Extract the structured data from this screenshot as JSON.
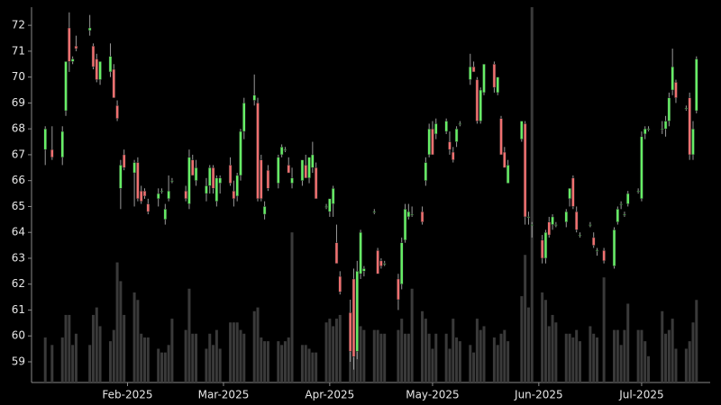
{
  "chart_data": {
    "type": "candlestick",
    "up_color": "#66ee66",
    "down_color": "#f07070",
    "wick_color": "#9a9a9a",
    "volume_color": "#3a3a3a",
    "xlim": [
      "2025-01-04",
      "2025-07-21"
    ],
    "xticks": [
      {
        "value": "2025-02-01",
        "label": "Feb-2025"
      },
      {
        "value": "2025-03-01",
        "label": "Mar-2025"
      },
      {
        "value": "2025-04-01",
        "label": "Apr-2025"
      },
      {
        "value": "2025-05-01",
        "label": "May-2025"
      },
      {
        "value": "2025-06-01",
        "label": "Jun-2025"
      },
      {
        "value": "2025-07-01",
        "label": "Jul-2025"
      }
    ],
    "ylim": [
      58.2,
      72.7
    ],
    "yticks": [
      59,
      60,
      61,
      62,
      63,
      64,
      65,
      66,
      67,
      68,
      69,
      70,
      71,
      72
    ],
    "vlim": [
      0,
      100
    ],
    "x": [
      "2025-01-08",
      "2025-01-10",
      "2025-01-13",
      "2025-01-14",
      "2025-01-15",
      "2025-01-16",
      "2025-01-17",
      "2025-01-21",
      "2025-01-22",
      "2025-01-23",
      "2025-01-24",
      "2025-01-27",
      "2025-01-28",
      "2025-01-29",
      "2025-01-30",
      "2025-01-31",
      "2025-02-03",
      "2025-02-04",
      "2025-02-05",
      "2025-02-06",
      "2025-02-07",
      "2025-02-10",
      "2025-02-11",
      "2025-02-12",
      "2025-02-13",
      "2025-02-14",
      "2025-02-18",
      "2025-02-19",
      "2025-02-20",
      "2025-02-21",
      "2025-02-24",
      "2025-02-25",
      "2025-02-26",
      "2025-02-27",
      "2025-02-28",
      "2025-03-03",
      "2025-03-04",
      "2025-03-05",
      "2025-03-06",
      "2025-03-07",
      "2025-03-10",
      "2025-03-11",
      "2025-03-12",
      "2025-03-13",
      "2025-03-14",
      "2025-03-17",
      "2025-03-18",
      "2025-03-19",
      "2025-03-20",
      "2025-03-21",
      "2025-03-24",
      "2025-03-25",
      "2025-03-26",
      "2025-03-27",
      "2025-03-28",
      "2025-03-31",
      "2025-04-01",
      "2025-04-02",
      "2025-04-03",
      "2025-04-04",
      "2025-04-07",
      "2025-04-08",
      "2025-04-09",
      "2025-04-10",
      "2025-04-11",
      "2025-04-14",
      "2025-04-15",
      "2025-04-16",
      "2025-04-17",
      "2025-04-21",
      "2025-04-22",
      "2025-04-23",
      "2025-04-24",
      "2025-04-25",
      "2025-04-28",
      "2025-04-29",
      "2025-04-30",
      "2025-05-01",
      "2025-05-02",
      "2025-05-05",
      "2025-05-06",
      "2025-05-07",
      "2025-05-08",
      "2025-05-09",
      "2025-05-12",
      "2025-05-13",
      "2025-05-14",
      "2025-05-15",
      "2025-05-16",
      "2025-05-19",
      "2025-05-20",
      "2025-05-21",
      "2025-05-22",
      "2025-05-23",
      "2025-05-27",
      "2025-05-28",
      "2025-05-29",
      "2025-05-30",
      "2025-06-02",
      "2025-06-03",
      "2025-06-04",
      "2025-06-05",
      "2025-06-06",
      "2025-06-09",
      "2025-06-10",
      "2025-06-11",
      "2025-06-12",
      "2025-06-13",
      "2025-06-16",
      "2025-06-17",
      "2025-06-18",
      "2025-06-20",
      "2025-06-23",
      "2025-06-24",
      "2025-06-25",
      "2025-06-26",
      "2025-06-27",
      "2025-06-30",
      "2025-07-01",
      "2025-07-02",
      "2025-07-03",
      "2025-07-07",
      "2025-07-08",
      "2025-07-09",
      "2025-07-10",
      "2025-07-11",
      "2025-07-14",
      "2025-07-15",
      "2025-07-16",
      "2025-07-17"
    ],
    "open": [
      67.2,
      67.2,
      66.9,
      68.7,
      71.9,
      70.6,
      71.2,
      71.8,
      71.2,
      70.7,
      69.9,
      70.2,
      70.3,
      68.9,
      65.7,
      67.0,
      66.3,
      66.7,
      65.6,
      65.6,
      65.1,
      65.3,
      65.6,
      64.5,
      65.3,
      66.0,
      65.6,
      65.1,
      66.8,
      66.0,
      65.5,
      65.8,
      66.5,
      65.2,
      65.9,
      66.6,
      65.6,
      65.4,
      66.2,
      67.9,
      69.1,
      69.0,
      66.8,
      64.7,
      66.4,
      65.9,
      67.0,
      67.2,
      66.6,
      65.9,
      66.0,
      66.6,
      66.1,
      66.5,
      66.5,
      65.0,
      64.8,
      65.1,
      63.6,
      62.3,
      60.9,
      62.2,
      59.4,
      62.4,
      62.5,
      64.8,
      63.3,
      62.9,
      62.8,
      62.2,
      62.0,
      63.7,
      64.6,
      64.7,
      64.8,
      66.0,
      67.0,
      68.0,
      67.8,
      67.9,
      67.5,
      67.1,
      67.5,
      68.2,
      69.9,
      70.4,
      69.9,
      68.3,
      69.4,
      70.5,
      69.4,
      68.4,
      67.1,
      65.9,
      67.6,
      68.2,
      64.6,
      64.3,
      63.7,
      63.0,
      64.4,
      64.3,
      64.3,
      64.4,
      65.3,
      66.1,
      64.8,
      63.9,
      64.3,
      63.8,
      63.3,
      63.3,
      62.7,
      64.4,
      65.1,
      64.7,
      65.1,
      65.6,
      65.3,
      67.8,
      68.0,
      68.0,
      68.0,
      68.3,
      69.5,
      69.8,
      68.8,
      69.2,
      67.0,
      68.7
    ],
    "high": [
      68.1,
      68.1,
      68.1,
      70.6,
      72.5,
      70.8,
      71.6,
      72.4,
      71.3,
      70.9,
      70.6,
      71.3,
      70.5,
      69.1,
      66.8,
      67.2,
      66.8,
      66.9,
      65.8,
      65.7,
      65.3,
      65.7,
      65.7,
      65.1,
      66.2,
      66.1,
      65.8,
      67.2,
      67.0,
      66.8,
      66.1,
      66.6,
      66.6,
      66.2,
      66.2,
      66.9,
      66.0,
      66.3,
      68.0,
      69.2,
      70.1,
      69.2,
      67.0,
      65.2,
      66.6,
      67.0,
      67.4,
      67.3,
      66.9,
      66.5,
      66.8,
      67.0,
      66.9,
      67.5,
      66.7,
      65.1,
      65.3,
      65.8,
      64.3,
      62.5,
      61.4,
      62.6,
      62.9,
      64.1,
      62.7,
      64.9,
      63.4,
      63.0,
      62.9,
      62.4,
      63.8,
      65.1,
      65.1,
      65.0,
      65.0,
      66.9,
      68.2,
      68.3,
      68.4,
      68.4,
      67.9,
      67.3,
      68.1,
      68.3,
      70.9,
      70.6,
      70.0,
      69.6,
      70.5,
      70.6,
      70.0,
      68.5,
      67.3,
      66.8,
      68.3,
      68.3,
      64.8,
      64.4,
      63.9,
      64.1,
      64.6,
      64.7,
      64.4,
      64.9,
      65.7,
      66.2,
      65.0,
      64.0,
      64.4,
      64.0,
      63.4,
      63.4,
      64.2,
      65.0,
      65.2,
      64.8,
      65.6,
      65.7,
      67.9,
      68.1,
      68.1,
      68.3,
      68.5,
      69.4,
      71.1,
      69.9,
      68.9,
      69.4,
      68.3,
      70.8
    ],
    "low": [
      66.6,
      66.8,
      66.6,
      68.5,
      70.2,
      70.5,
      71.0,
      71.6,
      70.3,
      69.8,
      69.7,
      70.0,
      69.2,
      68.3,
      64.9,
      66.4,
      65.0,
      65.2,
      65.1,
      65.3,
      64.7,
      65.0,
      65.5,
      64.3,
      65.2,
      65.9,
      65.2,
      64.9,
      66.2,
      65.8,
      65.2,
      65.5,
      65.5,
      65.0,
      65.5,
      65.8,
      65.0,
      65.2,
      66.0,
      67.6,
      68.9,
      65.2,
      65.2,
      64.5,
      65.6,
      65.7,
      66.9,
      67.1,
      66.3,
      65.7,
      65.8,
      66.1,
      65.9,
      66.3,
      65.3,
      64.9,
      64.6,
      64.6,
      62.8,
      61.6,
      59.0,
      58.7,
      59.1,
      62.2,
      62.3,
      64.7,
      62.4,
      62.6,
      62.7,
      61.0,
      61.8,
      63.6,
      64.5,
      64.6,
      64.3,
      65.8,
      66.9,
      67.0,
      67.6,
      67.8,
      67.0,
      66.7,
      67.3,
      68.1,
      69.7,
      70.2,
      68.2,
      68.2,
      69.3,
      69.4,
      69.3,
      67.0,
      66.5,
      65.9,
      67.5,
      64.3,
      64.3,
      63.8,
      62.8,
      62.8,
      63.8,
      64.1,
      64.2,
      64.2,
      65.0,
      64.9,
      64.0,
      63.8,
      64.2,
      63.4,
      63.1,
      62.8,
      62.6,
      64.3,
      64.9,
      64.6,
      65.0,
      65.5,
      65.2,
      67.6,
      67.9,
      67.8,
      67.7,
      68.1,
      69.3,
      69.0,
      68.7,
      66.8,
      66.8,
      68.6
    ],
    "close": [
      68.0,
      66.9,
      67.9,
      70.6,
      70.6,
      70.7,
      71.1,
      71.9,
      70.4,
      69.9,
      70.6,
      70.8,
      69.2,
      68.4,
      66.6,
      66.5,
      66.7,
      65.3,
      65.2,
      65.4,
      64.8,
      65.5,
      65.6,
      64.9,
      65.6,
      66.0,
      65.3,
      66.9,
      66.2,
      66.5,
      65.8,
      66.5,
      65.7,
      66.1,
      66.1,
      65.9,
      65.3,
      66.2,
      67.9,
      69.0,
      69.3,
      65.3,
      65.3,
      65.0,
      65.7,
      66.9,
      67.3,
      67.2,
      66.3,
      66.1,
      66.8,
      66.1,
      66.9,
      67.0,
      65.3,
      65.0,
      65.3,
      65.7,
      62.8,
      61.7,
      59.4,
      59.2,
      62.5,
      64.0,
      62.6,
      64.8,
      62.4,
      62.7,
      62.8,
      61.4,
      63.6,
      64.9,
      64.8,
      64.7,
      64.4,
      66.7,
      68.0,
      67.0,
      68.2,
      68.3,
      67.2,
      66.8,
      68.0,
      68.2,
      70.4,
      70.2,
      68.3,
      69.5,
      70.5,
      69.6,
      70.0,
      67.0,
      66.5,
      66.6,
      68.3,
      64.6,
      64.6,
      64.3,
      63.0,
      64.0,
      63.9,
      64.6,
      64.3,
      64.8,
      65.7,
      65.0,
      64.1,
      63.9,
      64.3,
      63.5,
      63.3,
      62.9,
      64.1,
      64.9,
      65.1,
      64.7,
      65.5,
      65.6,
      67.7,
      68.0,
      68.0,
      68.0,
      68.3,
      69.2,
      70.4,
      69.2,
      68.8,
      67.0,
      68.0,
      70.7
    ],
    "volume": [
      12,
      10,
      12,
      18,
      18,
      10,
      13,
      10,
      18,
      20,
      15,
      11,
      14,
      32,
      27,
      18,
      24,
      22,
      13,
      12,
      12,
      9,
      8,
      8,
      10,
      17,
      14,
      25,
      13,
      13,
      9,
      13,
      10,
      14,
      9,
      16,
      16,
      16,
      14,
      13,
      19,
      20,
      12,
      11,
      11,
      11,
      10,
      11,
      12,
      40,
      10,
      10,
      9,
      8,
      8,
      16,
      17,
      15,
      17,
      18,
      18,
      18,
      15,
      15,
      14,
      14,
      14,
      13,
      13,
      14,
      17,
      13,
      13,
      25,
      19,
      17,
      13,
      9,
      13,
      13,
      9,
      17,
      12,
      11,
      10,
      8,
      17,
      14,
      15,
      12,
      10,
      13,
      14,
      11,
      23,
      34,
      20,
      100,
      24,
      22,
      15,
      18,
      16,
      13,
      13,
      12,
      14,
      11,
      15,
      13,
      12,
      28,
      14,
      14,
      10,
      14,
      21,
      14,
      14,
      11,
      7,
      19,
      13,
      14,
      17,
      9,
      9,
      11,
      16,
      22
    ]
  }
}
